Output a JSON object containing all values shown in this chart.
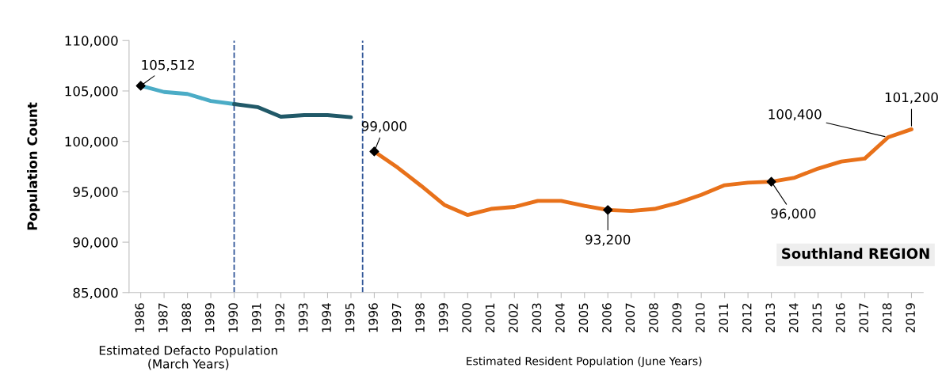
{
  "chart_data": {
    "type": "line",
    "title": "Southland REGION",
    "ylabel": "Population Count",
    "xlim": [
      1985.5,
      2019.5
    ],
    "xticks": [
      1986,
      1987,
      1988,
      1989,
      1990,
      1991,
      1992,
      1993,
      1994,
      1995,
      1996,
      1997,
      1998,
      1999,
      2000,
      2001,
      2002,
      2003,
      2004,
      2005,
      2006,
      2007,
      2008,
      2009,
      2010,
      2011,
      2012,
      2013,
      2014,
      2015,
      2016,
      2017,
      2018,
      2019
    ],
    "ylim": [
      85000,
      110000
    ],
    "yticks": [
      {
        "value": 85000,
        "label": "85,000"
      },
      {
        "value": 90000,
        "label": "90,000"
      },
      {
        "value": 95000,
        "label": "95,000"
      },
      {
        "value": 100000,
        "label": "100,000"
      },
      {
        "value": 105000,
        "label": "105,000"
      },
      {
        "value": 110000,
        "label": "110,000"
      }
    ],
    "grid": false,
    "series": [
      {
        "color": "#4bacc6",
        "x": [
          1986,
          1987,
          1988,
          1989,
          1990
        ],
        "values": [
          105512,
          104900,
          104700,
          104000,
          103700
        ]
      },
      {
        "color": "#215968",
        "x": [
          1990,
          1991,
          1992,
          1993,
          1994,
          1995
        ],
        "values": [
          103700,
          103400,
          102450,
          102600,
          102600,
          102400
        ]
      },
      {
        "color": "#e8711a",
        "x": [
          1996,
          1997,
          1998,
          1999,
          2000,
          2001,
          2002,
          2003,
          2004,
          2005,
          2006,
          2007,
          2008,
          2009,
          2010,
          2011,
          2012,
          2013,
          2014,
          2015,
          2016,
          2017,
          2018,
          2019
        ],
        "values": [
          99000,
          97400,
          95600,
          93700,
          92700,
          93300,
          93500,
          94100,
          94100,
          93600,
          93200,
          93100,
          93300,
          93900,
          94700,
          95650,
          95900,
          96000,
          96400,
          97300,
          98000,
          98300,
          100400,
          101200
        ]
      },
      {
        "type": "scatter",
        "marker": "diamond",
        "color": "#000000",
        "x": [
          1986,
          1996,
          2006,
          2013
        ],
        "values": [
          105512,
          99000,
          93200,
          96000
        ]
      }
    ],
    "ref_lines": [
      {
        "axis": "x",
        "value": 1990,
        "color": "#2f5597",
        "line_style": "dashed"
      },
      {
        "axis": "x",
        "value": 1995.5,
        "color": "#2f5597",
        "line_style": "dashed"
      }
    ],
    "annotations": [
      {
        "text": "105,512",
        "x": 1986,
        "y": 105512
      },
      {
        "text": "99,000",
        "x": 1996,
        "y": 99000
      },
      {
        "text": "93,200",
        "x": 2006,
        "y": 93200
      },
      {
        "text": "96,000",
        "x": 2013,
        "y": 96000
      },
      {
        "text": "100,400",
        "x": 2018,
        "y": 100400
      },
      {
        "text": "101,200",
        "x": 2019,
        "y": 101200
      },
      "Estimated Defacto Population\n(March Years)",
      "Estimated Resident Population (June Years)"
    ]
  }
}
